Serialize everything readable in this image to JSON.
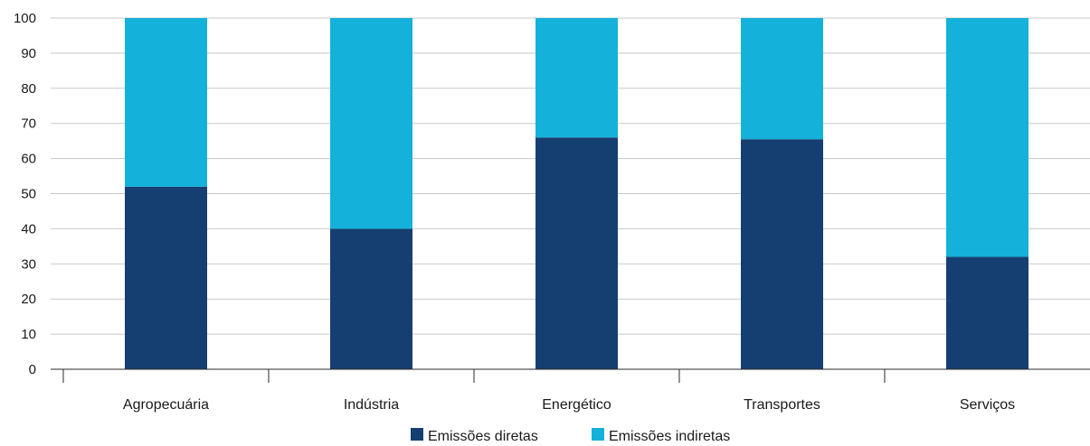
{
  "chart_data": {
    "type": "bar",
    "stacked": true,
    "categories": [
      "Agropecuária",
      "Indústria",
      "Energético",
      "Transportes",
      "Serviços"
    ],
    "series": [
      {
        "name": "Emissões diretas",
        "values": [
          52,
          40,
          66,
          65.5,
          32
        ],
        "color": "#163f71"
      },
      {
        "name": "Emissões indiretas",
        "values": [
          48,
          60,
          34,
          34.5,
          68
        ],
        "color": "#14b2da"
      }
    ],
    "ylim": [
      0,
      100
    ],
    "yticks": [
      0,
      10,
      20,
      30,
      40,
      50,
      60,
      70,
      80,
      90,
      100
    ],
    "grid": true,
    "legend_position": "bottom-center",
    "title": "",
    "xlabel": "",
    "ylabel": ""
  }
}
